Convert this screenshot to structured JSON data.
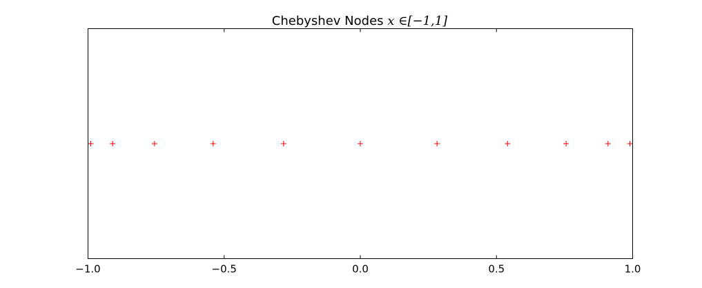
{
  "chart_data": {
    "type": "scatter",
    "title_text": "Chebyshev Nodes ",
    "title_math": "x ∈[−1,1]",
    "xlabel": "",
    "ylabel": "",
    "xlim": [
      -1.0,
      1.0
    ],
    "ylim": [
      -1.0,
      1.0
    ],
    "grid": false,
    "marker": "+",
    "marker_color": "#ff0000",
    "x_ticks": [
      -1.0,
      -0.5,
      0.0,
      0.5,
      1.0
    ],
    "x_tick_labels": [
      "−1.0",
      "−0.5",
      "0.0",
      "0.5",
      "1.0"
    ],
    "points": {
      "x": [
        -0.9898,
        -0.9096,
        -0.7557,
        -0.5406,
        -0.2817,
        0.0,
        0.2817,
        0.5406,
        0.7557,
        0.9096,
        0.9898
      ],
      "y": [
        0,
        0,
        0,
        0,
        0,
        0,
        0,
        0,
        0,
        0,
        0
      ]
    }
  }
}
